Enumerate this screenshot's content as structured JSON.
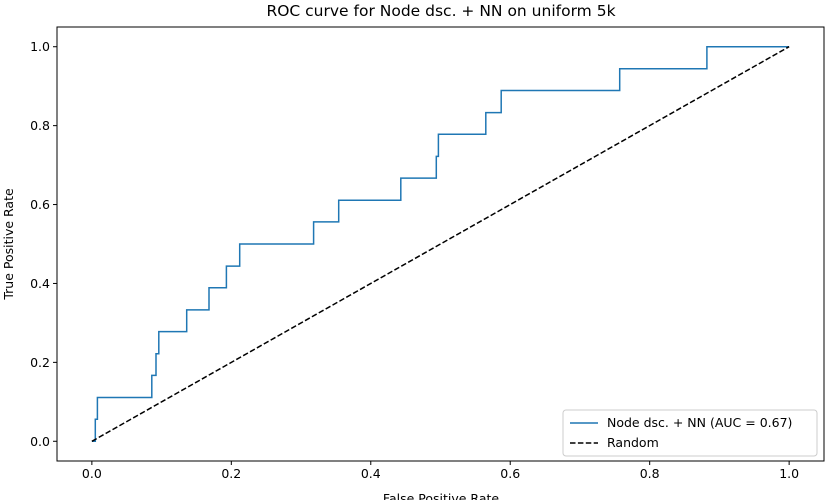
{
  "chart_data": {
    "type": "line",
    "title": "ROC curve for Node dsc. + NN on uniform 5k",
    "xlabel": "False Positive Rate",
    "ylabel": "True Positive Rate",
    "xlim": [
      -0.05,
      1.05
    ],
    "ylim": [
      -0.05,
      1.05
    ],
    "xticks": [
      "0.0",
      "0.2",
      "0.4",
      "0.6",
      "0.8",
      "1.0"
    ],
    "yticks": [
      "0.0",
      "0.2",
      "0.4",
      "0.6",
      "0.8",
      "1.0"
    ],
    "grid": false,
    "legend_position": "lower right",
    "series": [
      {
        "name": "Node dsc. + NN (AUC = 0.67)",
        "color": "#1f77b4",
        "style": "solid",
        "x": [
          0.0,
          0.005,
          0.005,
          0.008,
          0.008,
          0.086,
          0.086,
          0.092,
          0.092,
          0.096,
          0.096,
          0.136,
          0.136,
          0.168,
          0.168,
          0.193,
          0.193,
          0.212,
          0.212,
          0.318,
          0.318,
          0.354,
          0.354,
          0.443,
          0.443,
          0.494,
          0.494,
          0.497,
          0.497,
          0.565,
          0.565,
          0.587,
          0.587,
          0.757,
          0.757,
          0.882,
          0.882,
          1.0
        ],
        "y": [
          0.0,
          0.0,
          0.056,
          0.056,
          0.111,
          0.111,
          0.167,
          0.167,
          0.222,
          0.222,
          0.278,
          0.278,
          0.333,
          0.333,
          0.389,
          0.389,
          0.444,
          0.444,
          0.5,
          0.5,
          0.556,
          0.556,
          0.611,
          0.611,
          0.667,
          0.667,
          0.722,
          0.722,
          0.778,
          0.778,
          0.833,
          0.833,
          0.889,
          0.889,
          0.944,
          0.944,
          1.0,
          1.0
        ]
      },
      {
        "name": "Random",
        "color": "#000000",
        "style": "dashed",
        "x": [
          0.0,
          1.0
        ],
        "y": [
          0.0,
          1.0
        ]
      }
    ]
  }
}
